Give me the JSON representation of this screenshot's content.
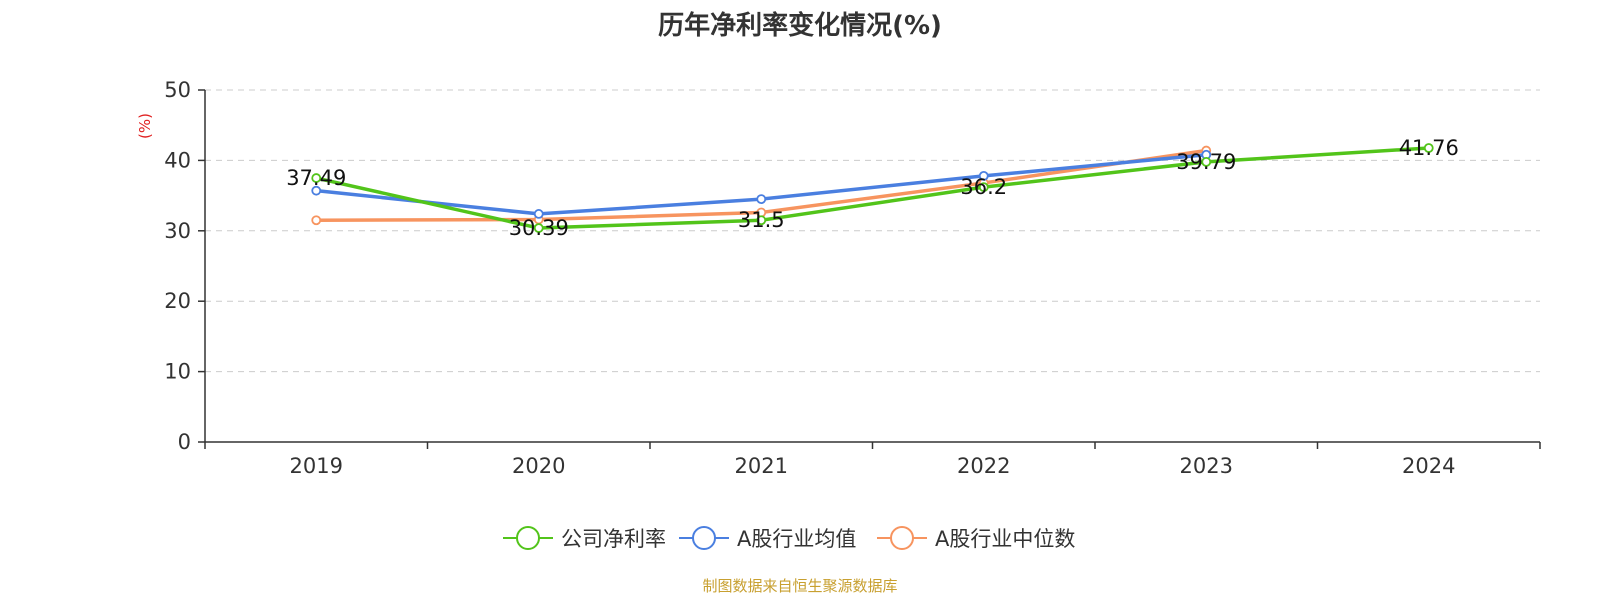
{
  "chart_data": {
    "type": "line",
    "title": "历年净利率变化情况(%)",
    "ylabel": "(%)",
    "xlabel": "",
    "categories": [
      "2019",
      "2020",
      "2021",
      "2022",
      "2023",
      "2024"
    ],
    "ylim": [
      0,
      50
    ],
    "yticks": [
      0,
      10,
      20,
      30,
      40,
      50
    ],
    "grid": true,
    "legend_position": "bottom",
    "series": [
      {
        "name": "公司净利率",
        "color": "#52c41a",
        "values": [
          37.49,
          30.39,
          31.5,
          36.2,
          39.79,
          41.76
        ],
        "show_labels": true,
        "labels": [
          "37.49",
          "30.39",
          "31.5",
          "36.2",
          "39.79",
          "41.76"
        ]
      },
      {
        "name": "A股行业均值",
        "color": "#4a7fe0",
        "values": [
          35.7,
          32.4,
          34.5,
          37.8,
          40.8,
          null
        ],
        "show_labels": false
      },
      {
        "name": "A股行业中位数",
        "color": "#f7945f",
        "values": [
          31.5,
          31.6,
          32.6,
          36.8,
          41.4,
          null
        ],
        "show_labels": false
      }
    ]
  },
  "footer": {
    "source": "制图数据来自恒生聚源数据库"
  },
  "colors": {
    "ylabel": "#e02020",
    "source": "#c8a030"
  }
}
